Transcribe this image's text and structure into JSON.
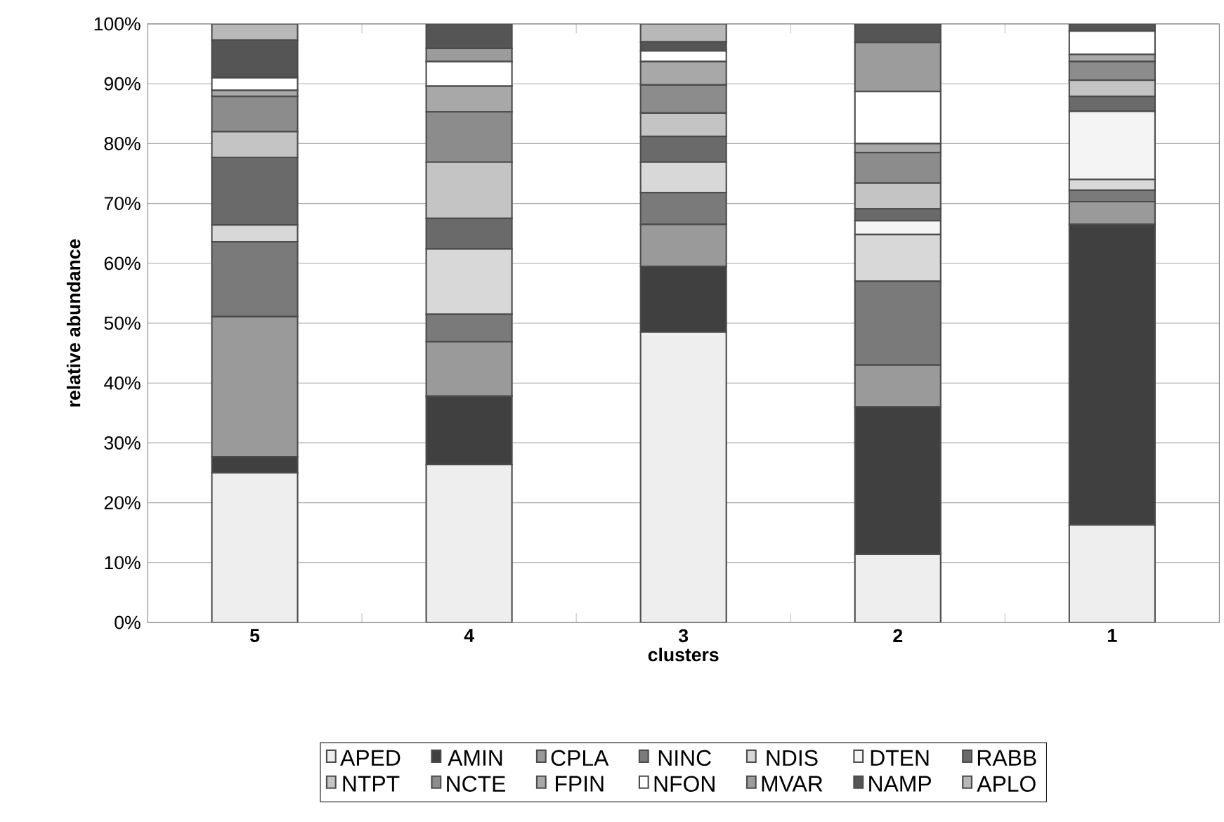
{
  "chart_data": {
    "type": "bar",
    "stacked": true,
    "xlabel": "clusters",
    "ylabel": "relative abundance",
    "categories": [
      "5",
      "4",
      "3",
      "2",
      "1"
    ],
    "ylim": [
      0,
      100
    ],
    "yticks": [
      {
        "value": 0,
        "label": "0%"
      },
      {
        "value": 10,
        "label": "10%"
      },
      {
        "value": 20,
        "label": "20%"
      },
      {
        "value": 30,
        "label": "30%"
      },
      {
        "value": 40,
        "label": "40%"
      },
      {
        "value": 50,
        "label": "50%"
      },
      {
        "value": 60,
        "label": "60%"
      },
      {
        "value": 70,
        "label": "70%"
      },
      {
        "value": 80,
        "label": "80%"
      },
      {
        "value": 90,
        "label": "90%"
      },
      {
        "value": 100,
        "label": "100%"
      }
    ],
    "grid": "y",
    "legend": "bottom",
    "series": [
      {
        "name": "APED",
        "color": "#eeeeee",
        "values": [
          25,
          26.4,
          48.5,
          11.4,
          16.3
        ]
      },
      {
        "name": "AMIN",
        "color": "#404040",
        "values": [
          2.7,
          11.4,
          11,
          24.6,
          50.2
        ]
      },
      {
        "name": "CPLA",
        "color": "#9a9a9a",
        "values": [
          23.4,
          9.1,
          7,
          7,
          3.8
        ]
      },
      {
        "name": "NINC",
        "color": "#7a7a7a",
        "values": [
          12.5,
          4.6,
          5.3,
          14,
          1.9
        ]
      },
      {
        "name": "NDIS",
        "color": "#d8d8d8",
        "values": [
          2.8,
          10.9,
          5.1,
          7.8,
          1.8
        ]
      },
      {
        "name": "DTEN",
        "color": "#f4f4f4",
        "values": [
          0,
          0,
          0,
          2.3,
          11.4
        ]
      },
      {
        "name": "RABB",
        "color": "#6a6a6a",
        "values": [
          11.3,
          5.1,
          4.3,
          2,
          2.5
        ]
      },
      {
        "name": "NTPT",
        "color": "#c4c4c4",
        "values": [
          4.3,
          9.4,
          3.9,
          4.3,
          2.7
        ]
      },
      {
        "name": "NCTE",
        "color": "#8c8c8c",
        "values": [
          5.9,
          8.4,
          4.7,
          5.1,
          3.1
        ]
      },
      {
        "name": "FPIN",
        "color": "#a8a8a8",
        "values": [
          1,
          4.3,
          3.9,
          1.5,
          1.2
        ]
      },
      {
        "name": "NFON",
        "color": "#ffffff",
        "values": [
          2.1,
          4.1,
          1.8,
          8.7,
          3.9
        ]
      },
      {
        "name": "MVAR",
        "color": "#9c9c9c",
        "values": [
          0,
          2.2,
          0,
          8.2,
          0
        ]
      },
      {
        "name": "NAMP",
        "color": "#555555",
        "values": [
          6.3,
          4.1,
          1.5,
          3.1,
          1.2
        ]
      },
      {
        "name": "APLO",
        "color": "#b8b8b8",
        "values": [
          2.7,
          0,
          3,
          0,
          0
        ]
      }
    ]
  }
}
